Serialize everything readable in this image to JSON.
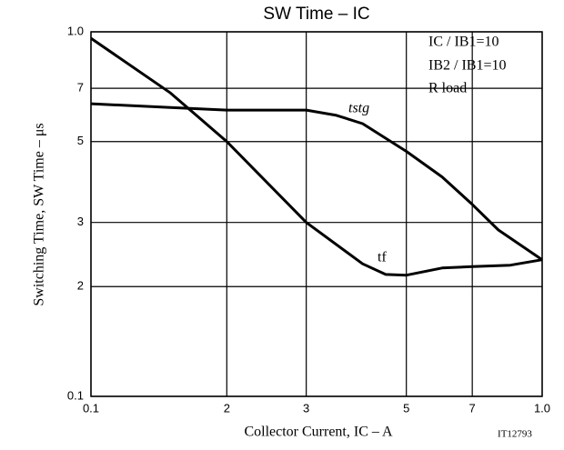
{
  "chart_data": {
    "type": "line",
    "title": "SW Time – IC",
    "xlabel": "Collector Current, IC – A",
    "ylabel": "Switching Time, SW Time – μs",
    "code": "IT12793",
    "annotations": [
      "IC / IB1=10",
      "IB2 / IB1=10",
      "R load"
    ],
    "xscale": "log",
    "yscale": "log",
    "grid": true,
    "xlim": [
      0.1,
      1.0
    ],
    "ylim": [
      0.1,
      1.0
    ],
    "xticks": [
      0.1,
      {
        "value": 0.2,
        "label": "2"
      },
      {
        "value": 0.3,
        "label": "3"
      },
      {
        "value": 0.5,
        "label": "5"
      },
      {
        "value": 0.7,
        "label": "7"
      },
      {
        "value": 1.0,
        "label": "1.0"
      }
    ],
    "yticks": [
      0.1,
      {
        "value": 0.2,
        "label": "2"
      },
      {
        "value": 0.3,
        "label": "3"
      },
      {
        "value": 0.5,
        "label": "5"
      },
      {
        "value": 0.7,
        "label": "7"
      },
      {
        "value": 1.0,
        "label": "1.0"
      }
    ],
    "series": [
      {
        "name": "tstg",
        "color": "#000000",
        "x": [
          0.1,
          0.15,
          0.2,
          0.3,
          0.35,
          0.4,
          0.5,
          0.6,
          0.7,
          0.8,
          1.0
        ],
        "values": [
          0.635,
          0.62,
          0.61,
          0.61,
          0.59,
          0.56,
          0.47,
          0.4,
          0.336,
          0.286,
          0.237
        ]
      },
      {
        "name": "tf",
        "color": "#000000",
        "x": [
          0.1,
          0.15,
          0.2,
          0.3,
          0.4,
          0.45,
          0.5,
          0.6,
          0.7,
          0.85,
          1.0
        ],
        "values": [
          0.96,
          0.68,
          0.5,
          0.3,
          0.231,
          0.216,
          0.215,
          0.225,
          0.227,
          0.229,
          0.237
        ]
      }
    ]
  }
}
